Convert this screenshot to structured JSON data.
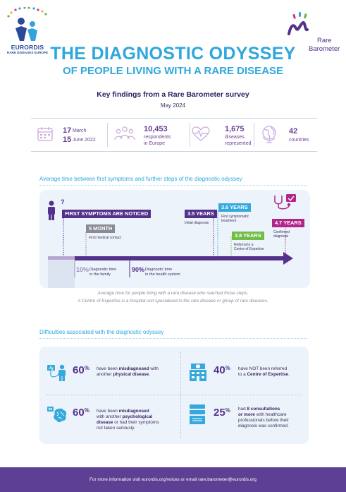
{
  "logos": {
    "eurordis_name": "EURORDIS",
    "eurordis_sub": "RARE DISEASES EUROPE",
    "rb_line1": "Rare",
    "rb_line2": "Barometer"
  },
  "header": {
    "title": "THE DIAGNOSTIC ODYSSEY",
    "subtitle": "OF PEOPLE LIVING WITH A RARE DISEASE",
    "key_findings": "Key findings from a Rare Barometer survey",
    "date": "May 2024"
  },
  "stats": {
    "dates": {
      "start_day": "17",
      "start_month": "March",
      "end_day": "15",
      "end_month": "June 2022"
    },
    "respondents": {
      "value": "10,453",
      "label_1": "respondents",
      "label_2": "in Europe"
    },
    "diseases": {
      "value": "1,675",
      "label_1": "diseases",
      "label_2": "represented"
    },
    "countries": {
      "value": "42",
      "label": "countries"
    }
  },
  "timeline": {
    "section_title": "Average time between first symptoms and further steps of the diagnostic odyssey",
    "question_mark": "?",
    "first_symptoms": "FIRST SYMPTOMS ARE NOTICED",
    "five_month": "5 MONTH",
    "first_contact": "First medical contact",
    "initial_years": "3.5 YEARS",
    "initial_label": "Initial diagnosis",
    "treatment_years": "3.6 YEARS",
    "treatment_label_1": "First symptomatic",
    "treatment_label_2": "treatment",
    "referral_years": "3.8 YEARS",
    "referral_label_1": "Referral to a",
    "referral_label_2": "Centre of Expertise",
    "confirmed_years": "4.7 YEARS",
    "confirmed_label_1": "Confirmed",
    "confirmed_label_2": "diagnosis",
    "family_pct": "10%",
    "family_label_1": "Diagnostic time",
    "family_label_2": "in the family",
    "health_pct": "90%",
    "health_label_1": "Diagnostic time",
    "health_label_2": "in the health system",
    "caption_1": "Average time for people living with a rare disease who reached those steps.",
    "caption_2": "A Centre of Expertise is a hospital unit specialised in the rare disease or group of rare diseases."
  },
  "difficulties": {
    "section_title": "Difficulties associated with the diagnostic odyssey",
    "d1": {
      "pct": "60",
      "sym": "%",
      "t1": "have been ",
      "b1": "misdiagnosed",
      "t2": " with",
      "t3": "another ",
      "b2": "physical disease",
      "t4": "."
    },
    "d2": {
      "pct": "40",
      "sym": "%",
      "t1": "have NOT been referred",
      "t2": "to a ",
      "b1": "Centre of Expertise",
      "t3": "."
    },
    "d3": {
      "pct": "60",
      "sym": "%",
      "t1": "have been ",
      "b1": "misdiagnosed",
      "t2": "with another ",
      "b2": "psychological",
      "b3": "disease",
      "t3": " or had their symptoms",
      "t4": "not taken seriously."
    },
    "d4": {
      "pct": "25",
      "sym": "%",
      "t1": "had ",
      "b1": "8 consultations",
      "b2": "or more",
      "t2": " with healthcare",
      "t3": "professionals before their",
      "t4": "diagnosis was confirmed."
    }
  },
  "footer": {
    "text": "For more information visit eurordis.org/voices or email rare.barometer@eurordis.org"
  },
  "colors": {
    "title_blue": "#2fa7dd",
    "purple": "#53318a",
    "grey_box": "#8b8b95",
    "cyan_box": "#35a9de",
    "green_box": "#71bd48",
    "magenta_box": "#b0268a",
    "footer": "#5d3f93"
  }
}
